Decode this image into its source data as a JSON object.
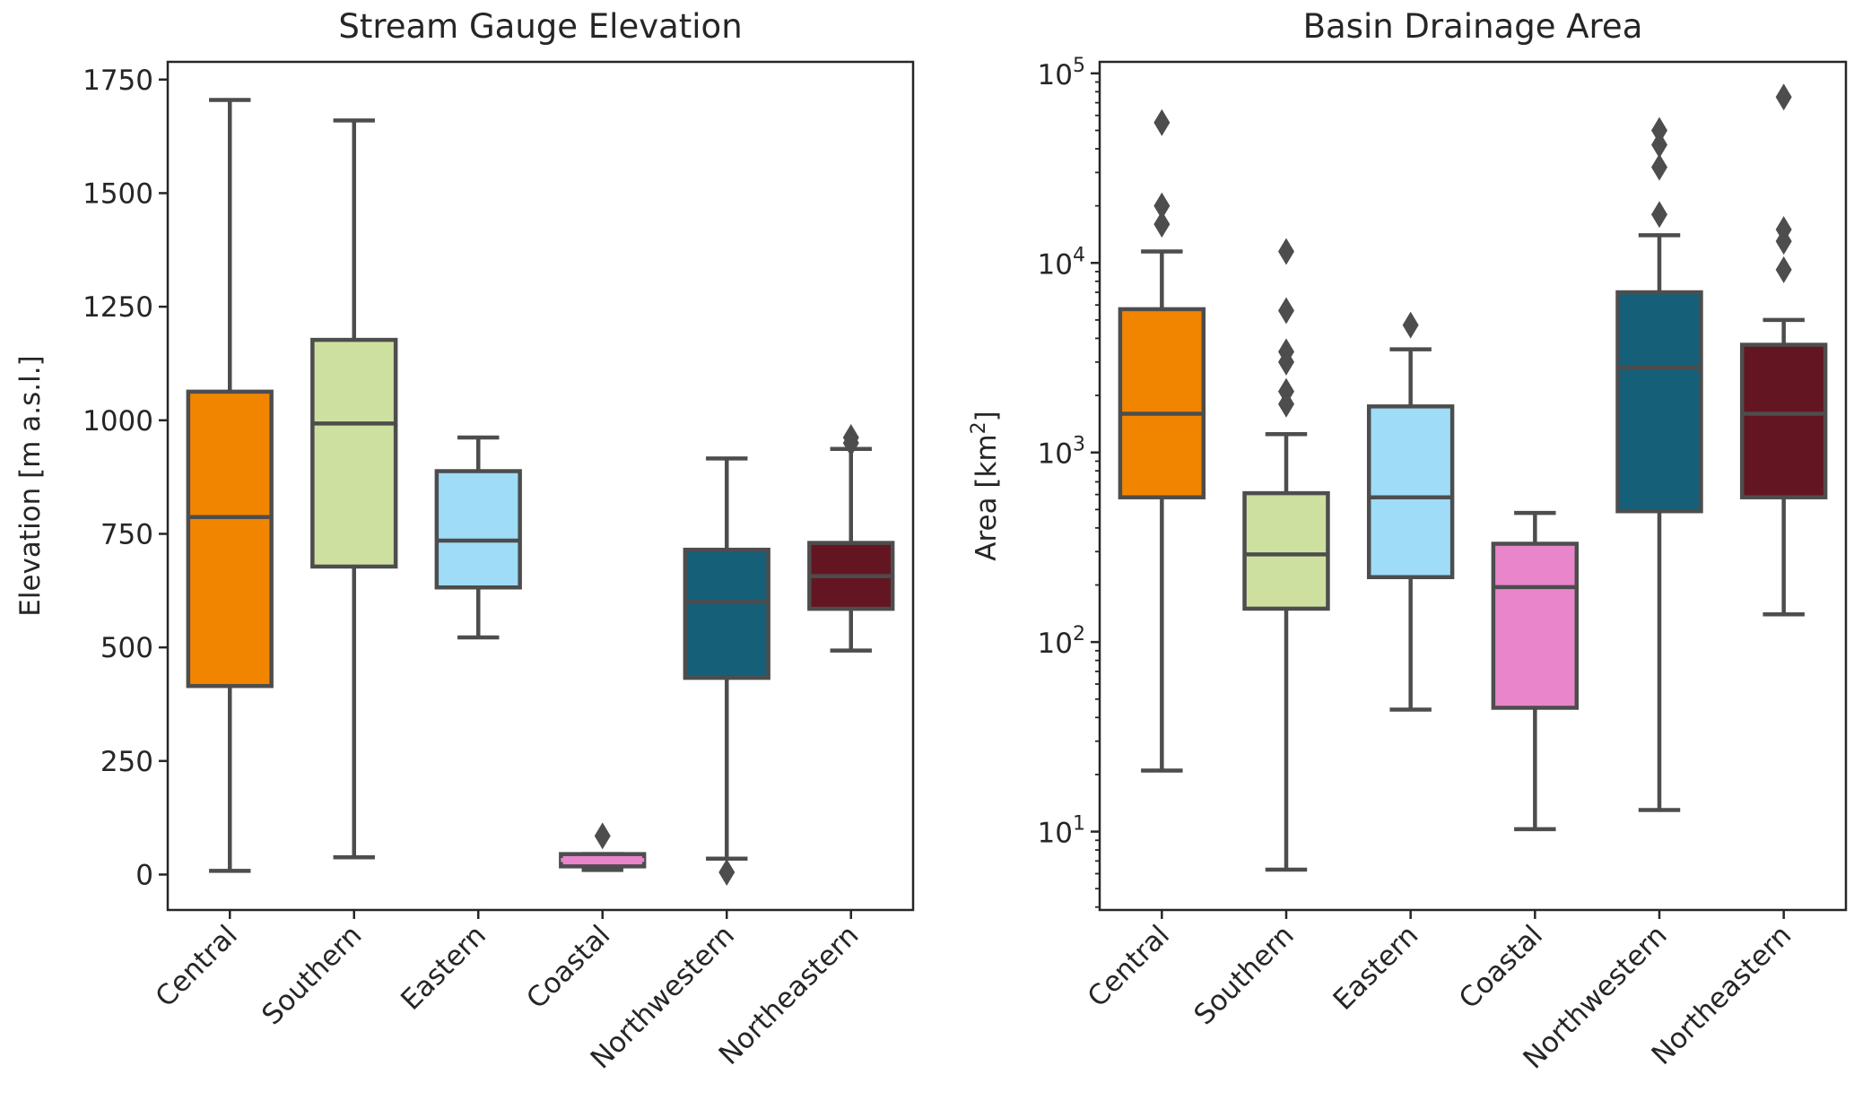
{
  "chart_data": [
    {
      "type": "box",
      "title": "Stream Gauge Elevation",
      "xlabel": "",
      "ylabel": "Elevation [m a.s.l.]",
      "yscale": "linear",
      "ylim": [
        -78,
        1789
      ],
      "yticks": [
        0,
        250,
        500,
        750,
        1000,
        1250,
        1500,
        1750
      ],
      "categories": [
        "Central",
        "Southern",
        "Eastern",
        "Coastal",
        "Northwestern",
        "Northeastern"
      ],
      "boxes": [
        {
          "whislo": 8,
          "q1": 415,
          "med": 787,
          "q3": 1063,
          "whishi": 1705,
          "fliers": []
        },
        {
          "whislo": 38,
          "q1": 678,
          "med": 993,
          "q3": 1177,
          "whishi": 1660,
          "fliers": []
        },
        {
          "whislo": 522,
          "q1": 632,
          "med": 735,
          "q3": 888,
          "whishi": 962,
          "fliers": []
        },
        {
          "whislo": 10,
          "q1": 18,
          "med": 32,
          "q3": 45,
          "whishi": 45,
          "fliers": [
            85
          ]
        },
        {
          "whislo": 35,
          "q1": 433,
          "med": 600,
          "q3": 715,
          "whishi": 916,
          "fliers": [
            5
          ]
        },
        {
          "whislo": 493,
          "q1": 585,
          "med": 657,
          "q3": 730,
          "whishi": 937,
          "fliers": [
            950,
            962
          ]
        }
      ]
    },
    {
      "type": "box",
      "title": "Basin Drainage Area",
      "xlabel": "",
      "ylabel": "Area [km",
      "ylabel_sup": "2",
      "ylabel_end": "]",
      "yscale": "log",
      "ylim": [
        3.86,
        115000
      ],
      "yticks": [
        10,
        100,
        1000,
        10000,
        100000
      ],
      "ytick_base": "10",
      "ytick_exps": [
        "1",
        "2",
        "3",
        "4",
        "5"
      ],
      "categories": [
        "Central",
        "Southern",
        "Eastern",
        "Coastal",
        "Northwestern",
        "Northeastern"
      ],
      "boxes": [
        {
          "whislo": 21,
          "q1": 580,
          "med": 1600,
          "q3": 5700,
          "whishi": 11500,
          "fliers": [
            16000,
            20000,
            55000
          ]
        },
        {
          "whislo": 6.3,
          "q1": 150,
          "med": 290,
          "q3": 610,
          "whishi": 1250,
          "fliers": [
            1800,
            2100,
            3000,
            3400,
            5600,
            11500
          ]
        },
        {
          "whislo": 44,
          "q1": 220,
          "med": 580,
          "q3": 1750,
          "whishi": 3500,
          "fliers": [
            4700
          ]
        },
        {
          "whislo": 10.3,
          "q1": 45,
          "med": 195,
          "q3": 330,
          "whishi": 480,
          "fliers": []
        },
        {
          "whislo": 13,
          "q1": 490,
          "med": 2800,
          "q3": 7000,
          "whishi": 14000,
          "fliers": [
            18000,
            32000,
            42000,
            50000
          ]
        },
        {
          "whislo": 140,
          "q1": 580,
          "med": 1600,
          "q3": 3700,
          "whishi": 5000,
          "fliers": [
            9200,
            13000,
            15000,
            75000
          ]
        }
      ]
    }
  ],
  "colors": {
    "boxes": [
      "#f28500",
      "#cde09f",
      "#9edcf7",
      "#e986cb",
      "#165f78",
      "#631622"
    ],
    "lines": "#4d4d4d",
    "axes": "#262626"
  }
}
